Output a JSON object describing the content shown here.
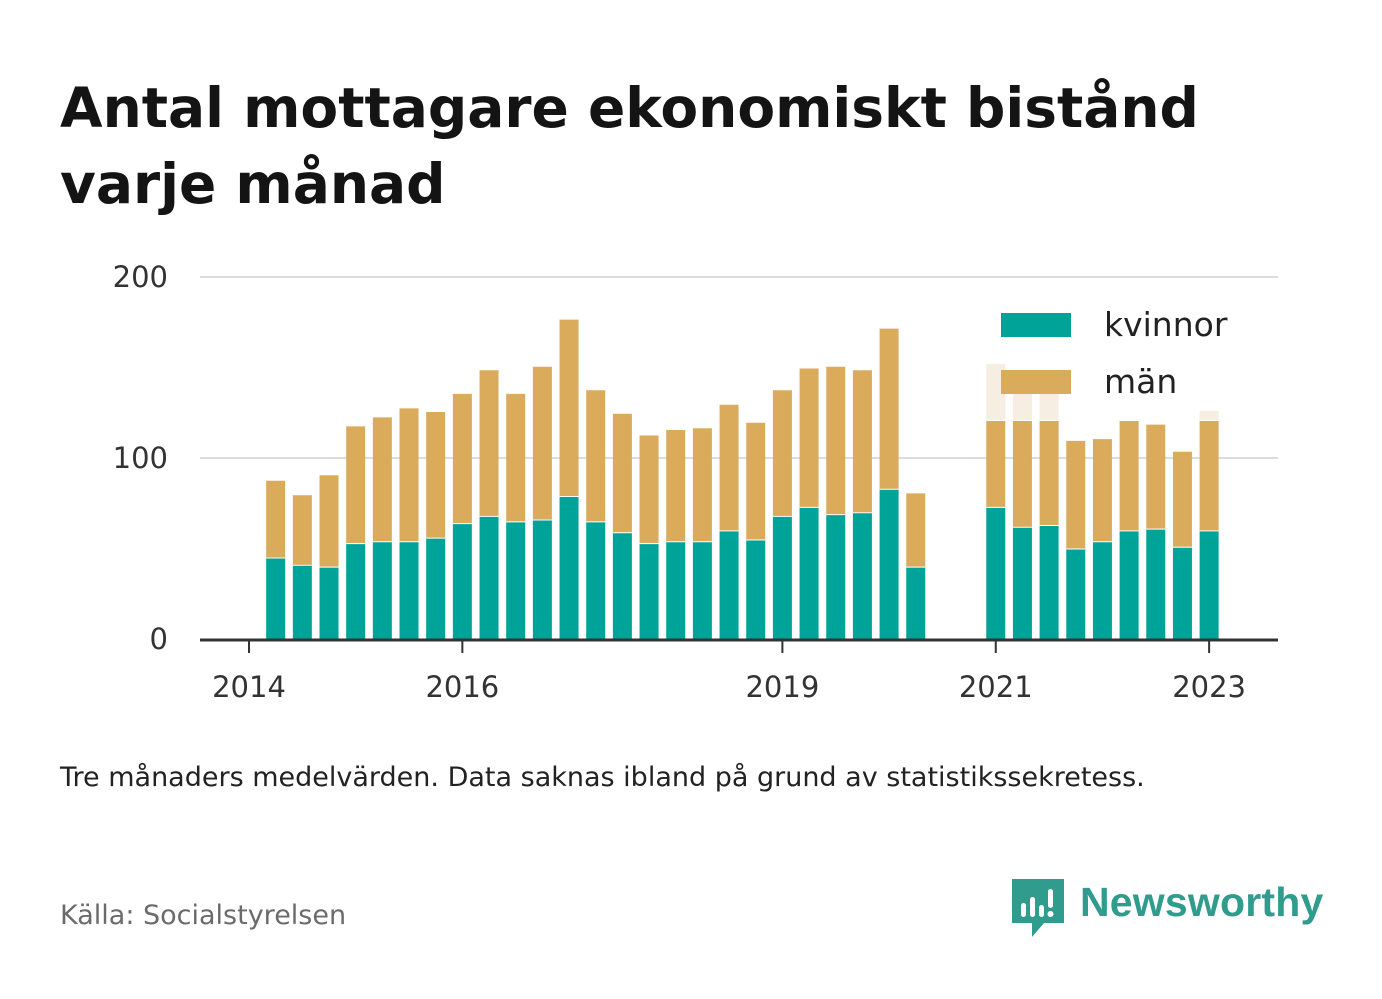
{
  "title": "Antal mottagare ekonomiskt bistånd varje månad",
  "note": "Tre månaders medelvärden. Data saknas ibland på grund av statistikssekretess.",
  "source": "Källa: Socialstyrelsen",
  "brand": {
    "name": "Newsworthy",
    "icon": "newsworthy-logo-icon"
  },
  "colors": {
    "kvinnor": "#00a398",
    "man": "#daab5a",
    "man_faded": "#f6eee0",
    "grid": "#dcdcdc",
    "axis": "#333333"
  },
  "chart_data": {
    "type": "bar",
    "stacked": true,
    "grid": true,
    "legend": "top-right",
    "ylim": [
      0,
      200
    ],
    "yticks": [
      0,
      100,
      200
    ],
    "xticks": [
      {
        "label": "2014",
        "at": 0
      },
      {
        "label": "2016",
        "at": 8
      },
      {
        "label": "2019",
        "at": 20
      },
      {
        "label": "2021",
        "at": 28
      },
      {
        "label": "2023",
        "at": 36
      }
    ],
    "categories": [
      "2014-Q1",
      "2014-Q2",
      "2014-Q3",
      "2014-Q4",
      "2015-Q1",
      "2015-Q2",
      "2015-Q3",
      "2015-Q4",
      "2016-Q1",
      "2016-Q2",
      "2016-Q3",
      "2016-Q4",
      "2017-Q1",
      "2017-Q2",
      "2017-Q3",
      "2017-Q4",
      "2018-Q1",
      "2018-Q2",
      "2018-Q3",
      "2018-Q4",
      "2019-Q1",
      "2019-Q2",
      "2019-Q3",
      "2019-Q4",
      "2020-Q1",
      "2020-Q2",
      "2020-Q3",
      "2020-Q4",
      "2021-Q1",
      "2021-Q2",
      "2021-Q3",
      "2021-Q4",
      "2022-Q1",
      "2022-Q2",
      "2022-Q3",
      "2022-Q4",
      "2023-Q1",
      "2023-Q2"
    ],
    "series": [
      {
        "name": "kvinnor",
        "values": [
          null,
          45,
          41,
          40,
          53,
          54,
          54,
          56,
          64,
          68,
          65,
          66,
          79,
          65,
          59,
          53,
          54,
          54,
          60,
          55,
          68,
          73,
          69,
          70,
          83,
          40,
          null,
          null,
          73,
          62,
          63,
          50,
          54,
          60,
          61,
          51,
          60,
          null
        ]
      },
      {
        "name": "män",
        "values": [
          null,
          43,
          39,
          51,
          65,
          69,
          74,
          70,
          72,
          81,
          71,
          85,
          98,
          73,
          66,
          60,
          62,
          63,
          70,
          65,
          70,
          77,
          82,
          79,
          89,
          41,
          null,
          null,
          48,
          59,
          58,
          60,
          57,
          61,
          58,
          53,
          61,
          null
        ]
      },
      {
        "name": "",
        "values": [
          null,
          null,
          null,
          null,
          null,
          null,
          null,
          null,
          null,
          null,
          null,
          null,
          null,
          null,
          null,
          null,
          null,
          null,
          null,
          null,
          null,
          null,
          null,
          null,
          null,
          null,
          null,
          null,
          31,
          21,
          17,
          null,
          null,
          null,
          null,
          null,
          5,
          null
        ]
      }
    ],
    "legend_entries": [
      "kvinnor",
      "män"
    ]
  }
}
